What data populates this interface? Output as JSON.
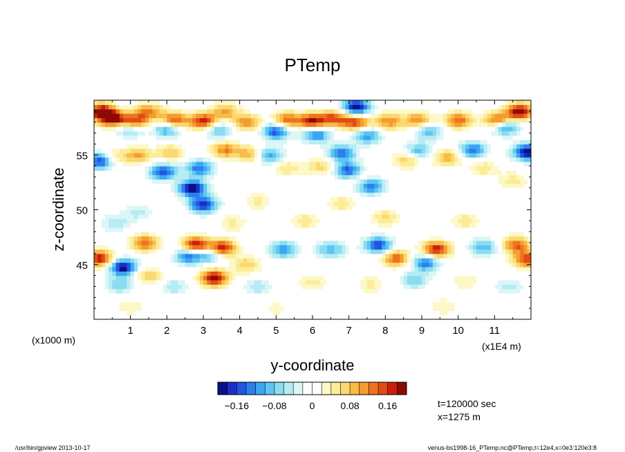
{
  "chart_data": {
    "type": "heatmap",
    "title": "PTemp",
    "xlabel": "y-coordinate",
    "ylabel": "z-coordinate",
    "x_unit": "(x1E4 m)",
    "y_unit": "(x1000 m)",
    "xlim": [
      0,
      12
    ],
    "ylim": [
      40,
      60
    ],
    "x_ticks": [
      "1",
      "2",
      "3",
      "4",
      "5",
      "6",
      "7",
      "8",
      "9",
      "10",
      "11"
    ],
    "y_ticks": [
      "45",
      "50",
      "55"
    ],
    "colorbar": {
      "min": -0.2,
      "max": 0.2,
      "step": 0.02,
      "tick_labels": [
        "−0.16",
        "−0.08",
        "0",
        "0.08",
        "0.16"
      ],
      "tick_values": [
        -0.16,
        -0.08,
        0,
        0.08,
        0.16
      ],
      "colors": [
        "#0a0f8c",
        "#1830c8",
        "#2255e0",
        "#2e7ef0",
        "#3aa6f4",
        "#5cc6f2",
        "#8adcf0",
        "#b6ecf4",
        "#dcf6f8",
        "#ffffff",
        "#ffffff",
        "#fcf8c8",
        "#fcec98",
        "#fcd870",
        "#f8bc48",
        "#f49c30",
        "#ec7420",
        "#e04c14",
        "#c8200c",
        "#8c0a06"
      ]
    },
    "annotations": [
      "t=120000 sec",
      "x=1275 m"
    ],
    "features": [
      {
        "x": 0.2,
        "y": 59.0,
        "v": 0.2
      },
      {
        "x": 0.5,
        "y": 58.3,
        "v": 0.18
      },
      {
        "x": 1.1,
        "y": 58.0,
        "v": 0.2
      },
      {
        "x": 1.5,
        "y": 59.0,
        "v": 0.12
      },
      {
        "x": 2.2,
        "y": 58.2,
        "v": 0.16
      },
      {
        "x": 3.0,
        "y": 58.1,
        "v": 0.18
      },
      {
        "x": 3.6,
        "y": 59.0,
        "v": 0.1
      },
      {
        "x": 4.2,
        "y": 58.0,
        "v": 0.12
      },
      {
        "x": 5.3,
        "y": 58.2,
        "v": 0.14
      },
      {
        "x": 6.0,
        "y": 58.1,
        "v": 0.18
      },
      {
        "x": 6.6,
        "y": 58.4,
        "v": 0.14
      },
      {
        "x": 7.2,
        "y": 58.0,
        "v": 0.16
      },
      {
        "x": 8.1,
        "y": 58.1,
        "v": 0.12
      },
      {
        "x": 8.9,
        "y": 58.2,
        "v": 0.12
      },
      {
        "x": 10.0,
        "y": 58.2,
        "v": 0.14
      },
      {
        "x": 11.1,
        "y": 58.2,
        "v": 0.16
      },
      {
        "x": 11.7,
        "y": 59.0,
        "v": 0.2
      },
      {
        "x": 1.0,
        "y": 57.5,
        "v": -0.14
      },
      {
        "x": 2.0,
        "y": 57.4,
        "v": -0.12
      },
      {
        "x": 3.4,
        "y": 57.3,
        "v": -0.1
      },
      {
        "x": 5.0,
        "y": 57.2,
        "v": -0.16
      },
      {
        "x": 6.1,
        "y": 56.9,
        "v": -0.14
      },
      {
        "x": 7.2,
        "y": 59.4,
        "v": -0.2
      },
      {
        "x": 7.5,
        "y": 56.8,
        "v": -0.12
      },
      {
        "x": 9.2,
        "y": 57.2,
        "v": -0.1
      },
      {
        "x": 11.3,
        "y": 57.6,
        "v": -0.14
      },
      {
        "x": 0.5,
        "y": 54.8,
        "v": 0.08
      },
      {
        "x": 1.2,
        "y": 55.0,
        "v": 0.1
      },
      {
        "x": 2.1,
        "y": 55.2,
        "v": 0.08
      },
      {
        "x": 3.6,
        "y": 55.5,
        "v": 0.12
      },
      {
        "x": 4.3,
        "y": 55.1,
        "v": 0.1
      },
      {
        "x": 5.3,
        "y": 53.8,
        "v": 0.06
      },
      {
        "x": 6.2,
        "y": 54.0,
        "v": 0.07
      },
      {
        "x": 7.3,
        "y": 53.0,
        "v": 0.05
      },
      {
        "x": 8.6,
        "y": 54.6,
        "v": 0.08
      },
      {
        "x": 9.7,
        "y": 54.8,
        "v": 0.1
      },
      {
        "x": 10.7,
        "y": 53.8,
        "v": 0.06
      },
      {
        "x": 11.5,
        "y": 52.7,
        "v": 0.05
      },
      {
        "x": 0.2,
        "y": 54.5,
        "v": -0.18
      },
      {
        "x": 1.9,
        "y": 53.5,
        "v": -0.16
      },
      {
        "x": 2.7,
        "y": 52.0,
        "v": -0.2
      },
      {
        "x": 3.0,
        "y": 50.5,
        "v": -0.18
      },
      {
        "x": 2.9,
        "y": 53.8,
        "v": -0.14
      },
      {
        "x": 4.8,
        "y": 55.0,
        "v": -0.12
      },
      {
        "x": 6.8,
        "y": 55.2,
        "v": -0.14
      },
      {
        "x": 7.0,
        "y": 53.6,
        "v": -0.16
      },
      {
        "x": 7.6,
        "y": 52.2,
        "v": -0.14
      },
      {
        "x": 8.9,
        "y": 55.4,
        "v": -0.1
      },
      {
        "x": 10.4,
        "y": 55.5,
        "v": -0.14
      },
      {
        "x": 11.9,
        "y": 55.3,
        "v": -0.2
      },
      {
        "x": 0.6,
        "y": 48.8,
        "v": -0.06
      },
      {
        "x": 1.4,
        "y": 47.0,
        "v": 0.14
      },
      {
        "x": 2.8,
        "y": 46.8,
        "v": 0.2
      },
      {
        "x": 3.5,
        "y": 46.5,
        "v": 0.2
      },
      {
        "x": 2.6,
        "y": 45.8,
        "v": -0.14
      },
      {
        "x": 3.2,
        "y": 46.0,
        "v": -0.12
      },
      {
        "x": 5.2,
        "y": 46.4,
        "v": -0.12
      },
      {
        "x": 6.5,
        "y": 46.4,
        "v": -0.1
      },
      {
        "x": 7.8,
        "y": 46.8,
        "v": -0.16
      },
      {
        "x": 8.3,
        "y": 45.6,
        "v": 0.14
      },
      {
        "x": 9.4,
        "y": 46.4,
        "v": 0.18
      },
      {
        "x": 9.1,
        "y": 45.2,
        "v": -0.14
      },
      {
        "x": 10.7,
        "y": 46.6,
        "v": -0.1
      },
      {
        "x": 11.6,
        "y": 46.8,
        "v": 0.14
      },
      {
        "x": 11.9,
        "y": 45.5,
        "v": 0.16
      },
      {
        "x": 0.8,
        "y": 44.8,
        "v": -0.2
      },
      {
        "x": 0.15,
        "y": 45.6,
        "v": 0.18
      },
      {
        "x": 3.3,
        "y": 43.8,
        "v": 0.2
      },
      {
        "x": 4.2,
        "y": 45.0,
        "v": 0.08
      },
      {
        "x": 1.5,
        "y": 44.0,
        "v": 0.08
      },
      {
        "x": 0.7,
        "y": 43.2,
        "v": -0.08
      },
      {
        "x": 2.2,
        "y": 43.0,
        "v": -0.06
      },
      {
        "x": 4.5,
        "y": 43.0,
        "v": -0.06
      },
      {
        "x": 6.0,
        "y": 43.4,
        "v": 0.05
      },
      {
        "x": 7.6,
        "y": 43.2,
        "v": 0.05
      },
      {
        "x": 8.8,
        "y": 43.6,
        "v": -0.08
      },
      {
        "x": 10.2,
        "y": 43.5,
        "v": 0.04
      },
      {
        "x": 11.4,
        "y": 43.0,
        "v": -0.05
      },
      {
        "x": 1.0,
        "y": 41.2,
        "v": 0.04
      },
      {
        "x": 5.0,
        "y": 41.0,
        "v": 0.03
      },
      {
        "x": 9.6,
        "y": 41.2,
        "v": 0.04
      },
      {
        "x": 3.8,
        "y": 48.8,
        "v": 0.05
      },
      {
        "x": 5.8,
        "y": 49.0,
        "v": 0.06
      },
      {
        "x": 8.0,
        "y": 49.3,
        "v": 0.07
      },
      {
        "x": 10.2,
        "y": 49.0,
        "v": 0.06
      },
      {
        "x": 1.2,
        "y": 49.8,
        "v": -0.05
      },
      {
        "x": 4.5,
        "y": 50.8,
        "v": 0.05
      },
      {
        "x": 6.8,
        "y": 50.6,
        "v": 0.06
      }
    ]
  },
  "footer": {
    "left": "/usr/bin/gpview  2013-10-17",
    "right": "venus-bs1998-16_PTemp.nc@PTemp,t=12e4,x=0e3:120e3:8"
  }
}
